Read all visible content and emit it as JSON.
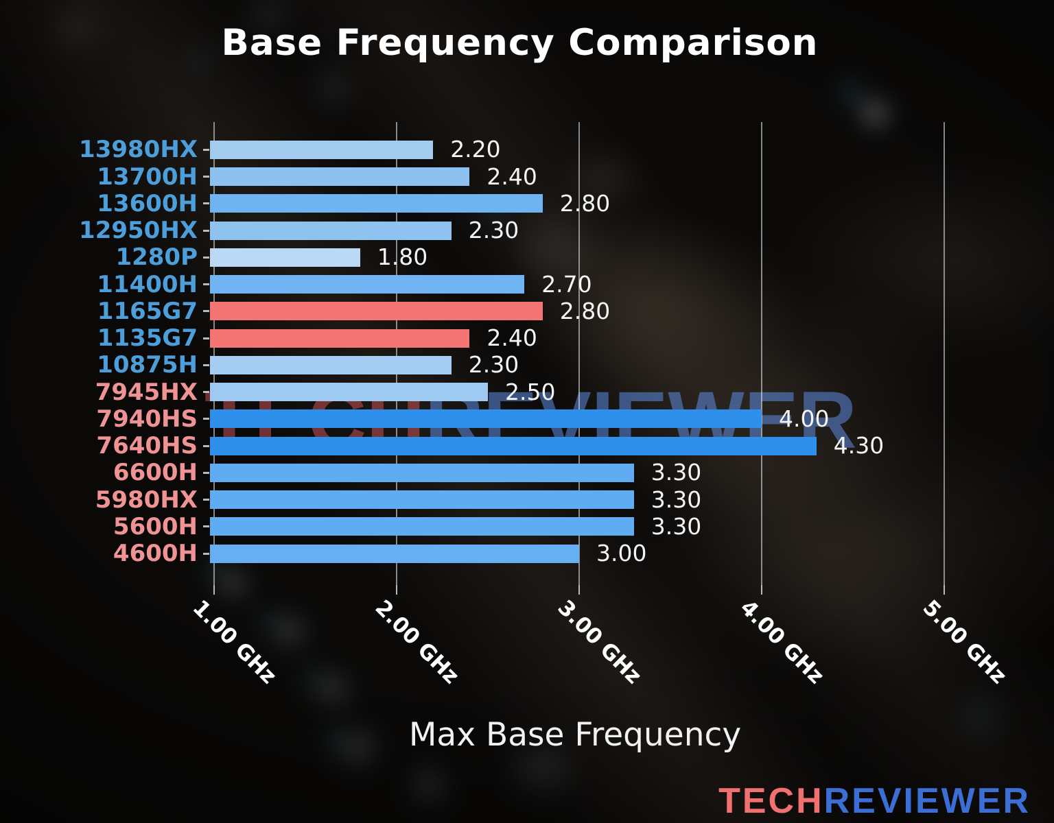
{
  "title": "Base Frequency Comparison",
  "axis": {
    "x_title": "Max Base Frequency",
    "tick_labels": [
      "1.00 GHz",
      "2.00 GHz",
      "3.00 GHz",
      "4.00 GHz",
      "5.00 GHz"
    ]
  },
  "watermark": {
    "part1": "TECH",
    "part2": "REVIEWER"
  },
  "logo": {
    "part1": "TECH",
    "part2": "REVIEWER"
  },
  "colors": {
    "background": "#0a0908",
    "title_text": "#ffffff",
    "value_text": "#f5f5f5",
    "gridline": "rgba(240,240,240,0.55)",
    "tick_stub": "rgba(230,230,230,0.8)",
    "intel_label": "#4c9fda",
    "amd_label": "#f09394",
    "watermark_red": "rgba(215,88,92,0.50)",
    "watermark_blue": "rgba(95,140,225,0.55)",
    "logo_red": "#f07170",
    "logo_blue": "#3b6fd6"
  },
  "chart_data": {
    "type": "bar",
    "orientation": "horizontal",
    "title": "Base Frequency Comparison",
    "xlabel": "Max Base Frequency",
    "ylabel": "",
    "xlim_ghz": [
      1.0,
      5.6
    ],
    "x_ticks_ghz": [
      1.0,
      2.0,
      3.0,
      4.0,
      5.0
    ],
    "grid": true,
    "categories": [
      "13980HX",
      "13700H",
      "13600H",
      "12950HX",
      "1280P",
      "11400H",
      "1165G7",
      "1135G7",
      "10875H",
      "7945HX",
      "7940HS",
      "7640HS",
      "6600H",
      "5980HX",
      "5600H",
      "4600H"
    ],
    "values": [
      2.2,
      2.4,
      2.8,
      2.3,
      1.8,
      2.7,
      2.8,
      2.4,
      2.3,
      2.5,
      4.0,
      4.3,
      3.3,
      3.3,
      3.3,
      3.0
    ],
    "value_labels": [
      "2.20",
      "2.40",
      "2.80",
      "2.30",
      "1.80",
      "2.70",
      "2.80",
      "2.40",
      "2.30",
      "2.50",
      "4.00",
      "4.30",
      "3.30",
      "3.30",
      "3.30",
      "3.00"
    ],
    "bar_colors": [
      "#a3cbee",
      "#8dc1ef",
      "#6fb4f1",
      "#8fc2ef",
      "#bbd9f4",
      "#70b4f1",
      "#f47573",
      "#f47573",
      "#a5cdf2",
      "#9ecaf1",
      "#2e90ea",
      "#2e90ea",
      "#5facf2",
      "#5facf2",
      "#5facf2",
      "#66aff2"
    ],
    "label_colors": [
      "#4c9fda",
      "#4c9fda",
      "#4c9fda",
      "#4c9fda",
      "#4c9fda",
      "#4c9fda",
      "#4c9fda",
      "#4c9fda",
      "#4c9fda",
      "#f09394",
      "#f09394",
      "#f09394",
      "#f09394",
      "#f09394",
      "#f09394",
      "#f09394"
    ]
  }
}
